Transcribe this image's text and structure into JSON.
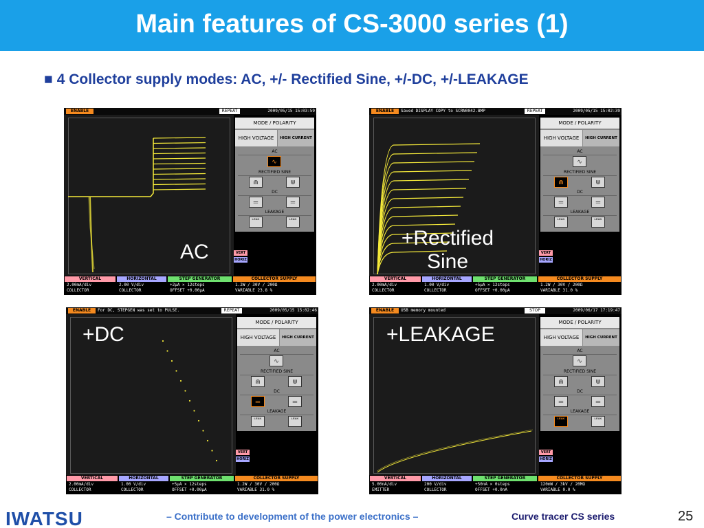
{
  "slide": {
    "title": "Main features of CS-3000 series (1)",
    "bullet_marker": "■",
    "bullet_text": "4 Collector supply modes: AC, +/- Rectified Sine, +/-DC, +/-LEAKAGE"
  },
  "panel_labels": {
    "mode_polarity": "MODE / POLARITY",
    "high_voltage": "HIGH VOLTAGE",
    "high_current": "HIGH CURRENT",
    "ac": "AC",
    "rectified_sine": "RECTIFIED SINE",
    "dc": "DC",
    "leakage": "LEAKAGE",
    "leak_icon": "LEAK",
    "vert": "VERT",
    "horiz": "HORIZ",
    "vertical": "VERTICAL",
    "horizontal": "HORIZONTAL",
    "step_generator": "STEP GENERATOR",
    "collector_supply": "COLLECTOR SUPPLY",
    "enable": "ENABLE"
  },
  "scopes": [
    {
      "caption": "AC",
      "message": "",
      "mode": "REPEAT",
      "date": "2009/05/15 15:03:59",
      "vertical": [
        "2.00mA/div",
        "COLLECTOR"
      ],
      "horizontal": [
        "2.00  V/div",
        "COLLECTOR"
      ],
      "step": [
        "+2μA  ×  12steps",
        "OFFSET  +0.00μA"
      ],
      "collector": [
        "1.2W /  30V /  200Ω",
        "VARIABLE     23.8 %"
      ]
    },
    {
      "caption_line1": "+Rectified",
      "caption_line2": "Sine",
      "message": "Saved DISPLAY COPY to SCRN0042.BMP",
      "mode": "REPEAT",
      "date": "2009/05/15 15:02:39",
      "vertical": [
        "2.00mA/div",
        "COLLECTOR"
      ],
      "horizontal": [
        "1.00  V/div",
        "COLLECTOR"
      ],
      "step": [
        "+5μA  ×  12steps",
        "OFFSET  +0.00μA"
      ],
      "collector": [
        "1.2W /  30V /  200Ω",
        "VARIABLE     31.0 %"
      ]
    },
    {
      "caption": "+DC",
      "message": "For DC, STEPGEN was set to PULSE.",
      "mode": "REPEAT",
      "date": "2009/05/15 15:02:46",
      "vertical": [
        "2.00mA/div",
        "COLLECTOR"
      ],
      "horizontal": [
        "1.00  V/div",
        "COLLECTOR"
      ],
      "step": [
        "+5μA  ×  12steps",
        "OFFSET  +0.00μA"
      ],
      "collector": [
        "1.2W /  30V /  200Ω",
        "VARIABLE     31.0 %"
      ]
    },
    {
      "caption": "+LEAKAGE",
      "message": "USB memory mounted",
      "mode": "STOP",
      "date": "2009/06/17 17:19:47",
      "vertical": [
        "5.00nA/div",
        "EMITTER"
      ],
      "horizontal": [
        "200   V/div",
        "COLLECTOR"
      ],
      "step": [
        "+50nA  ×  0steps",
        "OFFSET  +0.0nA"
      ],
      "collector": [
        "120mW /  3kV /  20MΩ",
        "VARIABLE      0.0 %"
      ]
    }
  ],
  "footer": {
    "logo": "IWATSU",
    "tagline": "– Contribute to development of the power electronics –",
    "series": "Curve tracer CS series",
    "page": "25"
  },
  "colors": {
    "title_bar": "#1aa0e8",
    "bullet_text": "#1f3f9c",
    "trace": "#f5ea3a",
    "enable": "#f58a1f",
    "vertical_header": "#ff9aa8",
    "horizontal_header": "#a6a6ff",
    "step_header": "#6ee06e",
    "collector_header": "#f58a1f"
  }
}
